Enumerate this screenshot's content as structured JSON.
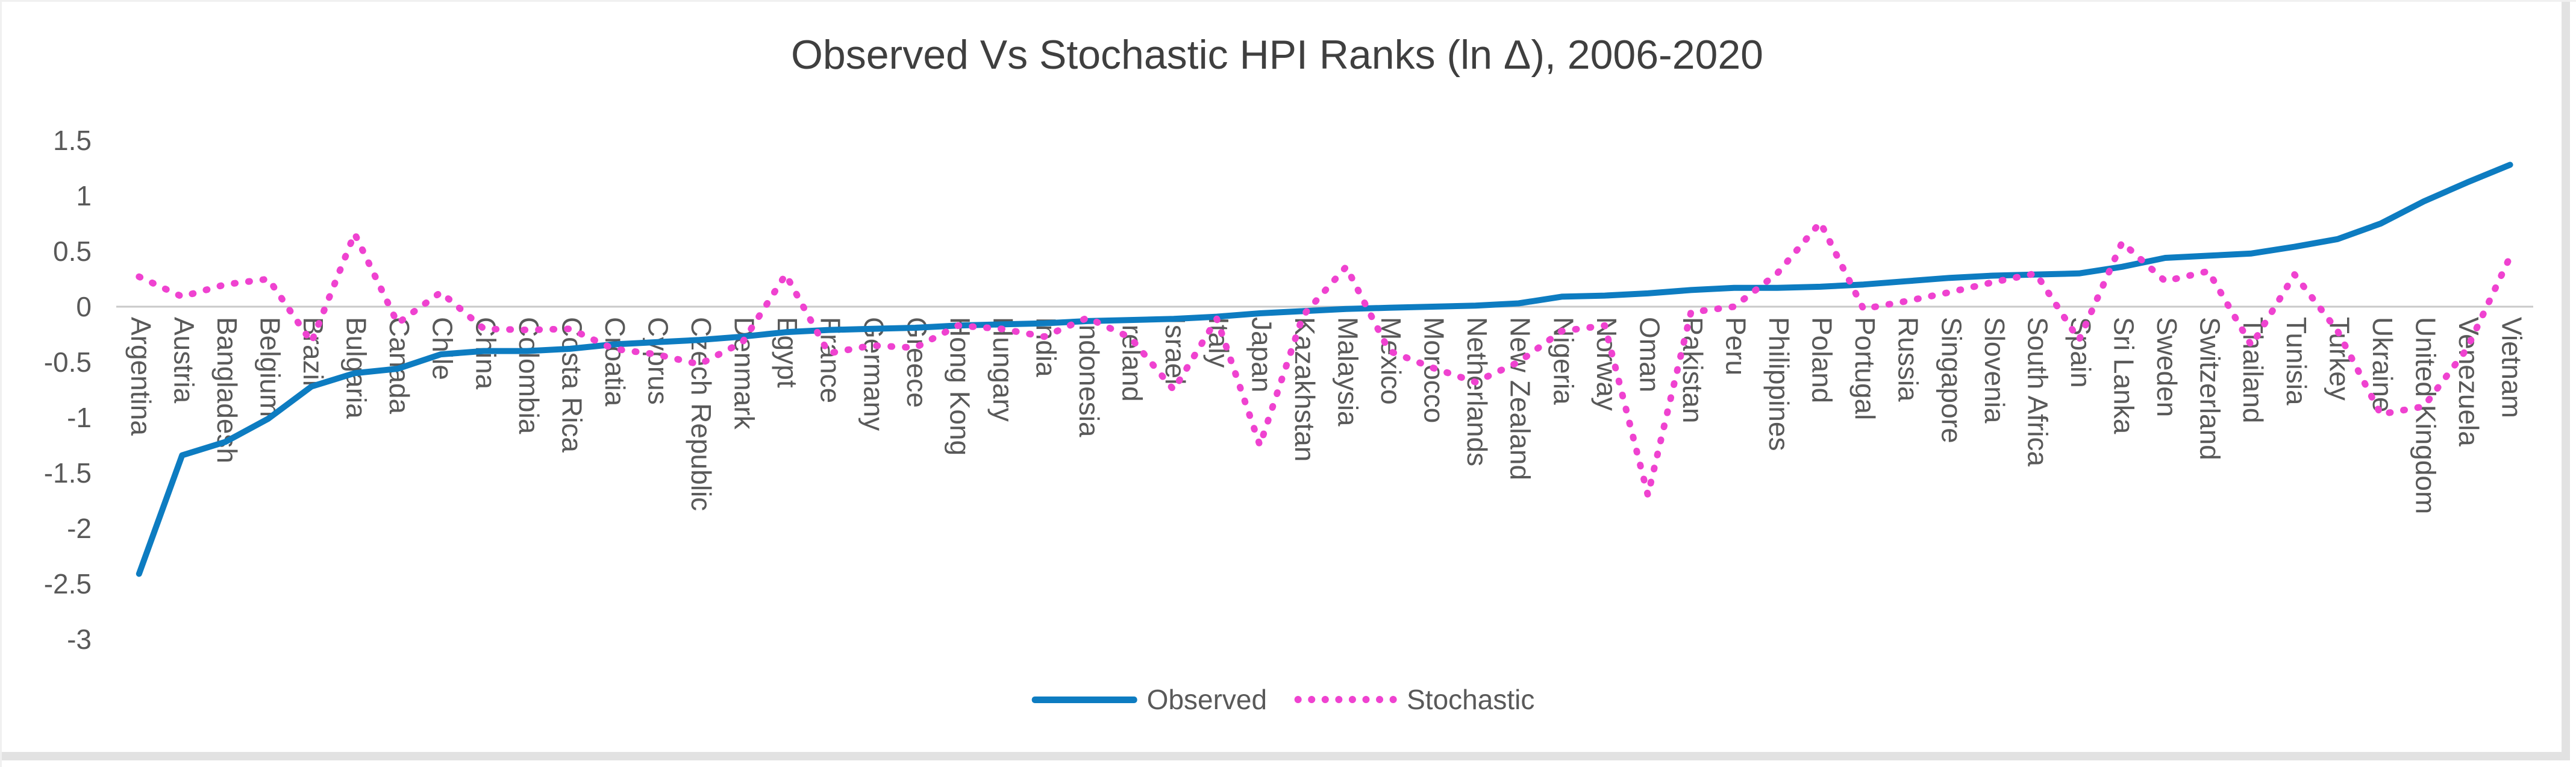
{
  "window": {
    "background": "#ffffff",
    "frame_color": "#e2e2e2"
  },
  "chart_data": {
    "type": "line",
    "title": "Observed Vs Stochastic HPI Ranks (ln Δ), 2006-2020",
    "title_color": "#3f3f3f",
    "axis_label_color": "#595959",
    "zero_line_color": "#c9c9c9",
    "grid": "zero-line-only",
    "legend_position": "bottom",
    "ylim": [
      -3,
      1.5
    ],
    "ytick_labels": [
      "1.5",
      "1",
      "0.5",
      "0",
      "-0.5",
      "-1",
      "-1.5",
      "-2",
      "-2.5",
      "-3"
    ],
    "ytick_values": [
      1.5,
      1,
      0.5,
      0,
      -0.5,
      -1,
      -1.5,
      -2,
      -2.5,
      -3
    ],
    "categories": [
      "Argentina",
      "Austria",
      "Bangladesh",
      "Belgium",
      "Brazil",
      "Bulgaria",
      "Canada",
      "Chile",
      "China",
      "Colombia",
      "Costa Rica",
      "Croatia",
      "Cyprus",
      "Czech Republic",
      "Denmark",
      "Egypt",
      "France",
      "Germany",
      "Greece",
      "Hong Kong",
      "Hungary",
      "India",
      "Indonesia",
      "Ireland",
      "Israel",
      "Italy",
      "Japan",
      "Kazakhstan",
      "Malaysia",
      "Mexico",
      "Morocco",
      "Netherlands",
      "New Zealand",
      "Nigeria",
      "Norway",
      "Oman",
      "Pakistan",
      "Peru",
      "Philippines",
      "Poland",
      "Portugal",
      "Russia",
      "Singapore",
      "Slovenia",
      "South Africa",
      "Spain",
      "Sri Lanka",
      "Sweden",
      "Switzerland",
      "Thailand",
      "Tunisia",
      "Turkey",
      "Ukraine",
      "United Kingdom",
      "Venezuela",
      "Vietnam"
    ],
    "series": [
      {
        "name": "Observed",
        "color": "#0d7cc1",
        "style": "solid",
        "values": [
          -2.41,
          -1.34,
          -1.22,
          -1.01,
          -0.72,
          -0.6,
          -0.56,
          -0.43,
          -0.4,
          -0.4,
          -0.38,
          -0.34,
          -0.32,
          -0.3,
          -0.27,
          -0.23,
          -0.21,
          -0.2,
          -0.19,
          -0.17,
          -0.16,
          -0.15,
          -0.13,
          -0.12,
          -0.11,
          -0.09,
          -0.06,
          -0.04,
          -0.02,
          -0.01,
          0.0,
          0.01,
          0.03,
          0.09,
          0.1,
          0.12,
          0.15,
          0.17,
          0.17,
          0.18,
          0.2,
          0.23,
          0.26,
          0.28,
          0.29,
          0.3,
          0.36,
          0.44,
          0.46,
          0.48,
          0.54,
          0.61,
          0.75,
          0.95,
          1.12,
          1.28
        ]
      },
      {
        "name": "Stochastic",
        "color": "#ef42d0",
        "style": "dotted",
        "values": [
          0.27,
          0.09,
          0.2,
          0.25,
          -0.32,
          0.66,
          -0.15,
          0.13,
          -0.2,
          -0.21,
          -0.2,
          -0.38,
          -0.43,
          -0.52,
          -0.32,
          0.29,
          -0.42,
          -0.35,
          -0.37,
          -0.17,
          -0.2,
          -0.27,
          -0.1,
          -0.28,
          -0.75,
          -0.11,
          -1.25,
          -0.08,
          0.36,
          -0.4,
          -0.55,
          -0.68,
          -0.5,
          -0.22,
          -0.17,
          -1.7,
          -0.05,
          0.0,
          0.3,
          0.76,
          -0.02,
          0.05,
          0.13,
          0.22,
          0.3,
          -0.3,
          0.58,
          0.23,
          0.32,
          -0.35,
          0.29,
          -0.22,
          -0.97,
          -0.9,
          -0.38,
          0.45
        ]
      }
    ]
  }
}
